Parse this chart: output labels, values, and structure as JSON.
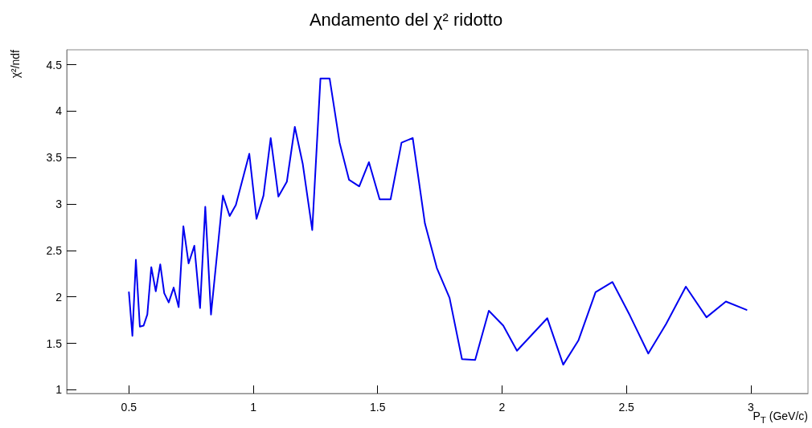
{
  "chart_data": {
    "type": "line",
    "title": "Andamento del χ² ridotto",
    "xlabel": "P$_{T}$ (GeV/c)",
    "ylabel": "χ²/ndf",
    "xlim": [
      0.25,
      3.23
    ],
    "xticks": [
      0.5,
      1,
      1.5,
      2,
      2.5,
      3
    ],
    "ylim": [
      0.96,
      4.66
    ],
    "yticks": [
      1,
      1.5,
      2,
      2.5,
      3,
      3.5,
      4,
      4.5
    ],
    "grid": false,
    "marker": "none",
    "line_style": "solid",
    "series": [
      {
        "color": "#0000f0",
        "x": [
          0.5,
          0.514,
          0.528,
          0.544,
          0.559,
          0.574,
          0.59,
          0.608,
          0.626,
          0.642,
          0.66,
          0.68,
          0.7,
          0.719,
          0.74,
          0.763,
          0.786,
          0.807,
          0.83,
          0.878,
          0.905,
          0.93,
          0.984,
          1.013,
          1.041,
          1.07,
          1.101,
          1.135,
          1.167,
          1.199,
          1.237,
          1.27,
          1.307,
          1.347,
          1.385,
          1.426,
          1.465,
          1.508,
          1.552,
          1.596,
          1.641,
          1.69,
          1.738,
          1.789,
          1.839,
          1.892,
          1.947,
          2.005,
          2.06,
          2.182,
          2.246,
          2.307,
          2.376,
          2.444,
          2.514,
          2.588,
          2.66,
          2.739,
          2.822,
          2.9,
          2.983
        ],
        "values": [
          2.05,
          1.58,
          2.4,
          1.68,
          1.69,
          1.81,
          2.32,
          2.06,
          2.35,
          2.04,
          1.94,
          2.1,
          1.89,
          2.76,
          2.36,
          2.55,
          1.88,
          2.97,
          1.81,
          3.09,
          2.87,
          2.99,
          3.54,
          2.84,
          3.09,
          3.71,
          3.08,
          3.24,
          3.83,
          3.43,
          2.72,
          4.35,
          4.35,
          3.66,
          3.26,
          3.19,
          3.45,
          3.05,
          3.05,
          3.66,
          3.71,
          2.79,
          2.31,
          1.99,
          1.33,
          1.32,
          1.85,
          1.69,
          1.42,
          1.77,
          1.27,
          1.53,
          2.05,
          2.16,
          1.8,
          1.39,
          1.71,
          2.11,
          1.78,
          1.95,
          1.86
        ]
      }
    ]
  }
}
